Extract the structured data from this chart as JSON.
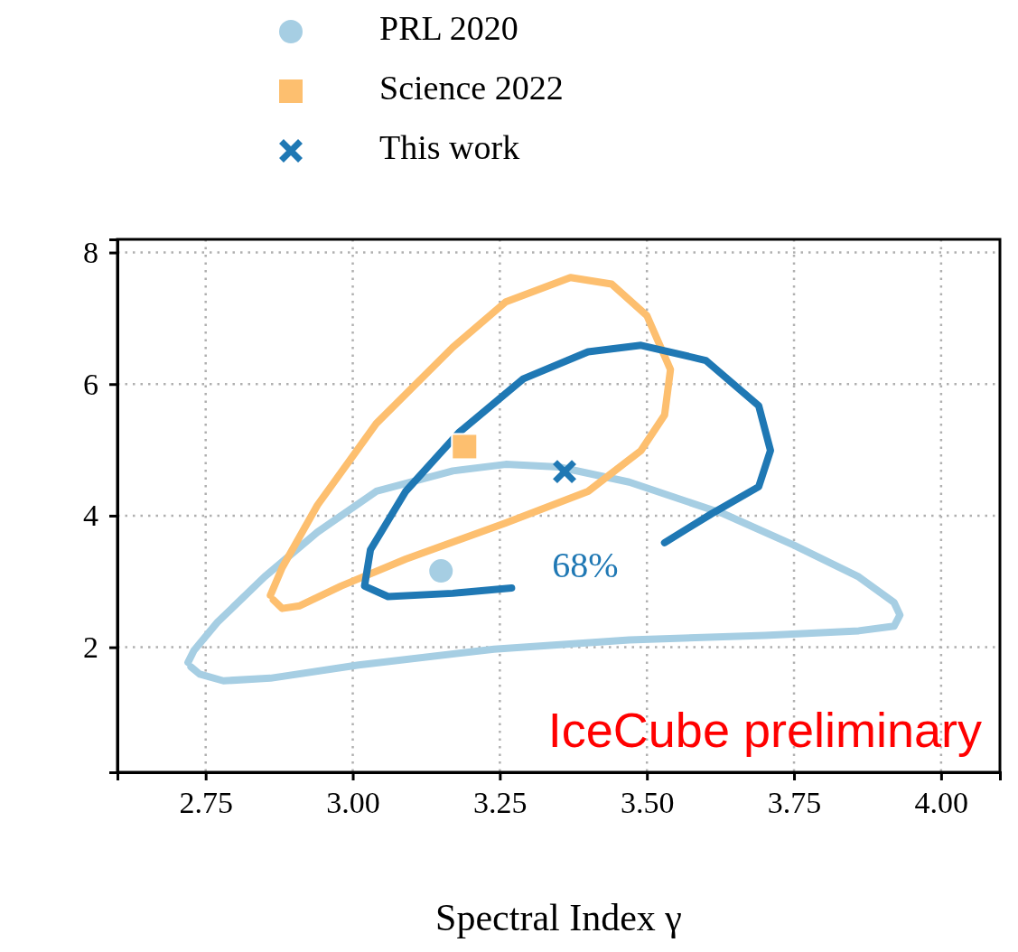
{
  "chart_data": {
    "type": "line",
    "xlabel": "Spectral Index γ",
    "xlim": [
      2.6,
      4.1
    ],
    "ylim": [
      0.1,
      8.2
    ],
    "xticks": [
      {
        "value": 2.75,
        "label": "2.75"
      },
      {
        "value": 3,
        "label": "3.00"
      },
      {
        "value": 3.25,
        "label": "3.25"
      },
      {
        "value": 3.5,
        "label": "3.50"
      },
      {
        "value": 3.75,
        "label": "3.75"
      },
      {
        "value": 4,
        "label": "4.00"
      }
    ],
    "yticks": [
      2,
      4,
      6,
      8
    ],
    "grid": true,
    "legend": "top",
    "annotations": [
      "68%",
      "IceCube preliminary"
    ],
    "series": [
      {
        "name": "PRL 2020",
        "type": "scatter",
        "marker": "circle",
        "color": "#a6cee3",
        "x": [
          3.15
        ],
        "values": [
          3.16
        ]
      },
      {
        "name": "Science 2022",
        "type": "scatter",
        "marker": "square",
        "color": "#fdbf6f",
        "x": [
          3.19
        ],
        "values": [
          5.05
        ]
      },
      {
        "name": "This work",
        "type": "scatter",
        "marker": "cross",
        "color": "#1f78b4",
        "x": [
          3.36
        ],
        "values": [
          4.67
        ]
      },
      {
        "color": "#a6cee3",
        "x": [
          2.72,
          2.73,
          2.77,
          2.85,
          2.94,
          3.04,
          3.17,
          3.26,
          3.35,
          3.47,
          3.63,
          3.75,
          3.86,
          3.92,
          3.93,
          3.92,
          3.86,
          3.7,
          3.47,
          3.24,
          3.01,
          2.86,
          2.78,
          2.74,
          2.725
        ],
        "values": [
          1.77,
          1.95,
          2.38,
          3.07,
          3.75,
          4.37,
          4.68,
          4.78,
          4.74,
          4.51,
          4.03,
          3.55,
          3.07,
          2.68,
          2.49,
          2.32,
          2.25,
          2.18,
          2.11,
          1.97,
          1.73,
          1.53,
          1.49,
          1.59,
          1.7
        ]
      },
      {
        "color": "#fdbf6f",
        "x": [
          2.86,
          2.88,
          2.94,
          3.04,
          3.17,
          3.26,
          3.37,
          3.44,
          3.5,
          3.54,
          3.53,
          3.49,
          3.4,
          3.26,
          3.09,
          2.98,
          2.91,
          2.88,
          2.865
        ],
        "values": [
          2.79,
          3.21,
          4.16,
          5.4,
          6.56,
          7.25,
          7.62,
          7.52,
          7.04,
          6.22,
          5.53,
          4.99,
          4.37,
          3.89,
          3.34,
          2.93,
          2.63,
          2.59,
          2.72
        ]
      },
      {
        "color": "#1f78b4",
        "x": [
          3.27,
          3.17,
          3.06,
          3.02,
          3.03,
          3.09,
          3.18,
          3.29,
          3.4,
          3.49,
          3.6,
          3.69,
          3.71,
          3.69,
          3.61,
          3.53
        ],
        "values": [
          2.9,
          2.82,
          2.77,
          2.93,
          3.48,
          4.37,
          5.26,
          6.08,
          6.49,
          6.59,
          6.36,
          5.67,
          4.99,
          4.44,
          4.03,
          3.59
        ]
      }
    ]
  }
}
